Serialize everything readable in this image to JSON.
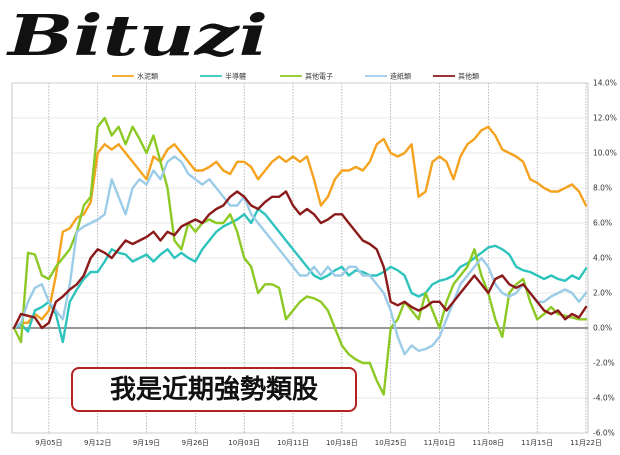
{
  "logo": {
    "text": "Bituzi"
  },
  "annotation": {
    "text": "我是近期強勢類股"
  },
  "chart_data": {
    "type": "line",
    "ylim": [
      -6,
      14
    ],
    "y_ticks": [
      "14.0%",
      "12.0%",
      "10.0%",
      "8.0%",
      "6.0%",
      "4.0%",
      "2.0%",
      "0.0%",
      "-2.0%",
      "-4.0%",
      "-6.0%"
    ],
    "y_tick_values": [
      14,
      12,
      10,
      8,
      6,
      4,
      2,
      0,
      -2,
      -4,
      -6
    ],
    "x_ticks": [
      "9月05日",
      "9月12日",
      "9月19日",
      "9月26日",
      "10月03日",
      "10月11日",
      "10月18日",
      "10月25日",
      "11月01日",
      "11月08日",
      "11月15日",
      "11月22日"
    ],
    "x_tick_index": [
      5,
      12,
      19,
      26,
      33,
      40,
      47,
      54,
      61,
      68,
      75,
      82
    ],
    "grid": true,
    "legend_position": "top",
    "series": [
      {
        "name": "水泥類",
        "color": "#f5a21f",
        "values": [
          0.0,
          0.3,
          0.3,
          0.8,
          0.5,
          1.0,
          3.0,
          5.5,
          5.7,
          6.3,
          6.5,
          7.2,
          10.0,
          10.5,
          10.2,
          10.5,
          10.0,
          9.5,
          9.0,
          8.5,
          9.8,
          9.5,
          10.2,
          10.5,
          10.0,
          9.5,
          9.0,
          9.0,
          9.2,
          9.5,
          9.0,
          8.8,
          9.5,
          9.5,
          9.2,
          8.5,
          9.0,
          9.5,
          9.8,
          9.5,
          9.8,
          9.5,
          9.8,
          8.5,
          7.0,
          7.5,
          8.5,
          9.0,
          9.0,
          9.2,
          9.0,
          9.5,
          10.5,
          10.8,
          10.0,
          9.8,
          10.0,
          10.5,
          7.5,
          7.8,
          9.5,
          9.8,
          9.5,
          8.5,
          9.8,
          10.5,
          10.8,
          11.3,
          11.5,
          11.0,
          10.2,
          10.0,
          9.8,
          9.5,
          8.5,
          8.3,
          8.0,
          7.8,
          7.8,
          8.0,
          8.2,
          7.8,
          7.0
        ]
      },
      {
        "name": "半導體",
        "color": "#2ec4bd",
        "values": [
          0.0,
          0.2,
          -0.2,
          1.0,
          1.2,
          1.5,
          0.8,
          -0.8,
          1.5,
          2.2,
          2.8,
          3.2,
          3.2,
          3.8,
          4.5,
          4.3,
          4.2,
          3.8,
          4.0,
          4.2,
          3.8,
          4.2,
          4.5,
          4.0,
          4.3,
          4.0,
          3.8,
          4.5,
          5.0,
          5.5,
          5.8,
          6.0,
          6.2,
          6.5,
          6.0,
          6.8,
          6.5,
          6.0,
          5.5,
          5.0,
          4.5,
          4.0,
          3.5,
          3.0,
          2.8,
          3.0,
          3.3,
          3.5,
          3.0,
          3.3,
          3.2,
          3.0,
          3.0,
          3.2,
          3.5,
          3.3,
          3.0,
          2.0,
          1.8,
          2.0,
          2.5,
          2.7,
          2.8,
          3.0,
          3.5,
          3.7,
          4.0,
          4.3,
          4.6,
          4.7,
          4.5,
          4.2,
          3.5,
          3.3,
          3.2,
          3.0,
          2.8,
          3.0,
          2.8,
          2.7,
          3.0,
          2.8,
          3.4
        ]
      },
      {
        "name": "其他電子",
        "color": "#8cc924",
        "values": [
          0.0,
          -0.8,
          4.3,
          4.2,
          3.0,
          2.8,
          3.5,
          4.0,
          4.5,
          5.5,
          7.0,
          7.5,
          11.5,
          12.0,
          11.0,
          11.5,
          10.5,
          11.5,
          10.8,
          10.0,
          11.0,
          9.5,
          8.0,
          5.0,
          4.5,
          6.0,
          5.5,
          6.0,
          6.2,
          6.0,
          6.0,
          6.5,
          5.5,
          4.0,
          3.5,
          2.0,
          2.5,
          2.5,
          2.3,
          0.5,
          1.0,
          1.5,
          1.8,
          1.7,
          1.5,
          1.0,
          0.0,
          -1.0,
          -1.5,
          -1.8,
          -2.0,
          -2.0,
          -3.0,
          -3.8,
          0.0,
          0.5,
          1.5,
          1.0,
          0.5,
          2.0,
          1.0,
          0.0,
          1.5,
          2.5,
          3.0,
          3.5,
          4.5,
          3.0,
          2.0,
          0.5,
          -0.5,
          2.0,
          2.5,
          2.8,
          1.5,
          0.5,
          0.8,
          1.2,
          0.8,
          0.7,
          0.6,
          0.5,
          0.5
        ]
      },
      {
        "name": "造紙類",
        "color": "#9ccce8",
        "values": [
          0.0,
          0.3,
          1.5,
          2.3,
          2.5,
          1.5,
          1.0,
          0.5,
          2.5,
          5.5,
          5.8,
          6.0,
          6.2,
          6.5,
          8.5,
          7.5,
          6.5,
          8.0,
          8.5,
          8.2,
          9.0,
          8.5,
          9.5,
          9.8,
          9.5,
          8.8,
          8.5,
          8.2,
          8.5,
          8.0,
          7.5,
          7.0,
          7.0,
          7.5,
          6.5,
          6.0,
          5.5,
          5.0,
          4.5,
          4.0,
          3.5,
          3.0,
          3.0,
          3.5,
          3.0,
          3.5,
          3.0,
          3.0,
          3.5,
          3.5,
          3.0,
          3.0,
          2.5,
          2.0,
          1.0,
          -0.5,
          -1.5,
          -1.0,
          -1.3,
          -1.2,
          -1.0,
          -0.5,
          0.5,
          1.5,
          2.5,
          3.0,
          3.5,
          4.0,
          3.5,
          2.5,
          2.0,
          1.8,
          2.0,
          2.5,
          2.0,
          1.5,
          1.5,
          1.8,
          2.0,
          2.2,
          2.0,
          1.5,
          2.0
        ]
      },
      {
        "name": "其他類",
        "color": "#8b1a1a",
        "values": [
          0.0,
          0.8,
          0.7,
          0.6,
          0.0,
          0.3,
          1.5,
          1.8,
          2.2,
          2.5,
          3.0,
          4.0,
          4.5,
          4.3,
          4.0,
          4.5,
          5.0,
          4.8,
          5.0,
          5.2,
          5.5,
          5.0,
          5.5,
          5.3,
          5.8,
          6.0,
          6.2,
          6.0,
          6.5,
          6.8,
          7.0,
          7.5,
          7.8,
          7.5,
          7.0,
          6.8,
          7.2,
          7.5,
          7.5,
          7.8,
          7.0,
          6.5,
          6.8,
          6.5,
          6.0,
          6.2,
          6.5,
          6.5,
          6.0,
          5.5,
          5.0,
          4.8,
          4.5,
          3.5,
          1.5,
          1.3,
          1.5,
          1.2,
          1.0,
          1.2,
          1.5,
          1.5,
          1.0,
          1.5,
          2.0,
          2.5,
          3.0,
          2.5,
          2.0,
          2.8,
          3.0,
          2.5,
          2.3,
          2.5,
          2.0,
          1.5,
          1.0,
          0.8,
          1.0,
          0.5,
          0.8,
          0.6,
          1.2
        ]
      }
    ]
  }
}
